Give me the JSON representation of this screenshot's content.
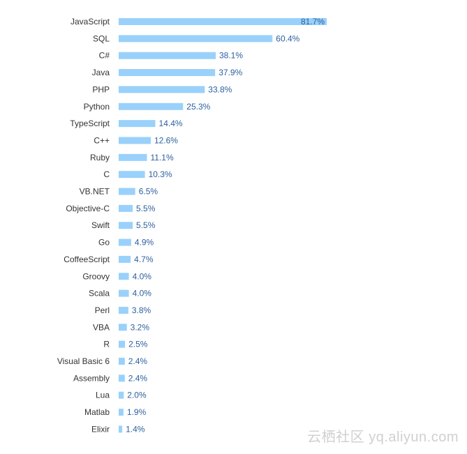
{
  "chart_data": {
    "type": "bar",
    "orientation": "horizontal",
    "categories": [
      "JavaScript",
      "SQL",
      "C#",
      "Java",
      "PHP",
      "Python",
      "TypeScript",
      "C++",
      "Ruby",
      "C",
      "VB.NET",
      "Objective-C",
      "Swift",
      "Go",
      "CoffeeScript",
      "Groovy",
      "Scala",
      "Perl",
      "VBA",
      "R",
      "Visual Basic 6",
      "Assembly",
      "Lua",
      "Matlab",
      "Elixir"
    ],
    "values": [
      81.7,
      60.4,
      38.1,
      37.9,
      33.8,
      25.3,
      14.4,
      12.6,
      11.1,
      10.3,
      6.5,
      5.5,
      5.5,
      4.9,
      4.7,
      4.0,
      4.0,
      3.8,
      3.2,
      2.5,
      2.4,
      2.4,
      2.0,
      1.9,
      1.4
    ],
    "value_labels": [
      "81.7%",
      "60.4%",
      "38.1%",
      "37.9%",
      "33.8%",
      "25.3%",
      "14.4%",
      "12.6%",
      "11.1%",
      "10.3%",
      "6.5%",
      "5.5%",
      "5.5%",
      "4.9%",
      "4.7%",
      "4.0%",
      "4.0%",
      "3.8%",
      "3.2%",
      "2.5%",
      "2.4%",
      "2.4%",
      "2.0%",
      "1.9%",
      "1.4%"
    ],
    "xlim": [
      0,
      100
    ],
    "grid": false,
    "colors": {
      "bar": "#99d1fb",
      "value_text": "#2c5f9e",
      "category_text": "#333333"
    }
  },
  "watermark": "云栖社区 yq.aliyun.com"
}
